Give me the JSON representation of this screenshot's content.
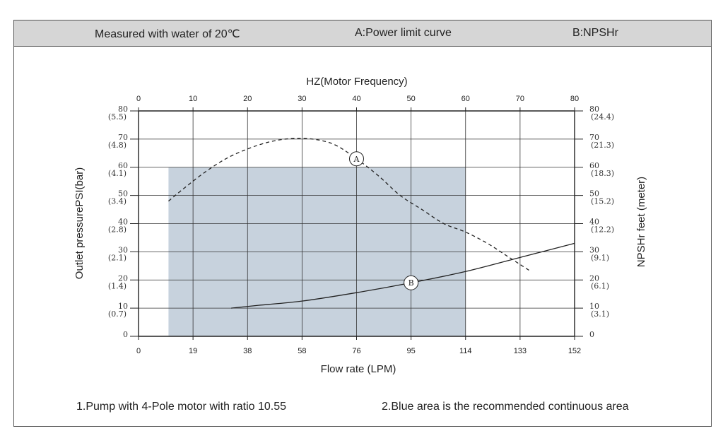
{
  "header": {
    "left": "Measured with water of 20℃",
    "center": "A:Power limit curve",
    "right": "B:NPSHr"
  },
  "notes": {
    "left": "1.Pump with 4-Pole motor with ratio 10.55",
    "right": "2.Blue area is the recommended continuous area"
  },
  "chart_data": {
    "type": "line",
    "title": "",
    "top_axis": {
      "label": "HZ(Motor Frequency)",
      "ticks": [
        "0",
        "10",
        "20",
        "30",
        "40",
        "50",
        "60",
        "70",
        "80"
      ]
    },
    "bottom_axis": {
      "label": "Flow rate (LPM)",
      "ticks": [
        "0",
        "19",
        "38",
        "58",
        "76",
        "95",
        "114",
        "133",
        "152"
      ]
    },
    "left_axis": {
      "label": "Outlet pressurePSI(bar)",
      "ticks": [
        {
          "psi": "0",
          "bar": ""
        },
        {
          "psi": "10",
          "bar": "(0.7)"
        },
        {
          "psi": "20",
          "bar": "(1.4)"
        },
        {
          "psi": "30",
          "bar": "(2.1)"
        },
        {
          "psi": "40",
          "bar": "(2.8)"
        },
        {
          "psi": "50",
          "bar": "(3.4)"
        },
        {
          "psi": "60",
          "bar": "(4.1)"
        },
        {
          "psi": "70",
          "bar": "(4.8)"
        },
        {
          "psi": "80",
          "bar": "(5.5)"
        }
      ]
    },
    "right_axis": {
      "label": "NPSHr feet (meter)",
      "ticks": [
        {
          "feet": "0",
          "meter": ""
        },
        {
          "feet": "10",
          "meter": "(3.1)"
        },
        {
          "feet": "20",
          "meter": "(6.1)"
        },
        {
          "feet": "30",
          "meter": "(9.1)"
        },
        {
          "feet": "40",
          "meter": "(12.2)"
        },
        {
          "feet": "50",
          "meter": "(15.2)"
        },
        {
          "feet": "60",
          "meter": "(18.3)"
        },
        {
          "feet": "70",
          "meter": "(21.3)"
        },
        {
          "feet": "80",
          "meter": "(24.4)"
        }
      ]
    },
    "hz_range": [
      0,
      80
    ],
    "psi_range": [
      0,
      80
    ],
    "grid": true,
    "colors": {
      "area": "#c7d2dd",
      "line": "#222222",
      "grid": "#333333"
    },
    "recommended_area": {
      "x_hz": [
        5.5,
        60
      ],
      "points": [
        [
          5.5,
          0
        ],
        [
          5.5,
          60
        ],
        [
          60,
          60
        ],
        [
          60,
          0
        ]
      ]
    },
    "series": [
      {
        "marker": "A",
        "style": "dashed",
        "marker_at": [
          40,
          63
        ],
        "points": [
          [
            5.5,
            48
          ],
          [
            8,
            52
          ],
          [
            12,
            58
          ],
          [
            16,
            63
          ],
          [
            20,
            66.5
          ],
          [
            24,
            69
          ],
          [
            28,
            70.2
          ],
          [
            32,
            70
          ],
          [
            36,
            68
          ],
          [
            40,
            63
          ],
          [
            44,
            57
          ],
          [
            48,
            50
          ],
          [
            52,
            45
          ],
          [
            56,
            40
          ],
          [
            60,
            37
          ],
          [
            64,
            33
          ],
          [
            68,
            28
          ],
          [
            72,
            23
          ]
        ]
      },
      {
        "marker": "B",
        "style": "solid",
        "marker_at": [
          50,
          19
        ],
        "points": [
          [
            17,
            10
          ],
          [
            22,
            11
          ],
          [
            30,
            12.5
          ],
          [
            40,
            15.5
          ],
          [
            50,
            19
          ],
          [
            60,
            23
          ],
          [
            70,
            28
          ],
          [
            80,
            33
          ]
        ]
      }
    ]
  }
}
